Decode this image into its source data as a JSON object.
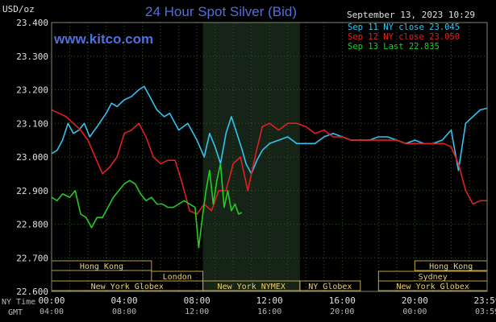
{
  "chart_data": {
    "type": "line",
    "title": "24 Hour Spot Silver (Bid)",
    "watermark": "www.kitco.com",
    "timestamp": "September 13, 2023 10:29",
    "ylabel": "USD/oz",
    "ylim": [
      22.6,
      23.4
    ],
    "yticks": [
      "23.400",
      "23.300",
      "23.200",
      "23.100",
      "23.000",
      "22.900",
      "22.800",
      "22.700",
      "22.600"
    ],
    "ytick_values": [
      23.4,
      23.3,
      23.2,
      23.1,
      23.0,
      22.9,
      22.8,
      22.7,
      22.6
    ],
    "xlim_hours": [
      0,
      23.98
    ],
    "xtick_hours": [
      0,
      4,
      8,
      12,
      16,
      20,
      23.98
    ],
    "xticks_ny": [
      "00:00",
      "04:00",
      "08:00",
      "12:00",
      "16:00",
      "20:00",
      "23:59"
    ],
    "xticks_gmt": [
      "04:00",
      "08:00",
      "12:00",
      "16:00",
      "20:00",
      "00:00",
      "03:59"
    ],
    "x_row_labels": {
      "ny": "NY Time",
      "gmt": "GMT"
    },
    "grid": true,
    "legend_position": "top-right",
    "shaded_session_hours": [
      8.33,
      13.67
    ],
    "colors": {
      "sep11": "#33c3f0",
      "sep12": "#e02020",
      "sep13": "#22cc22",
      "title": "#4f6fe0",
      "grid": "#3a5030",
      "session_text": "#e8d070",
      "session_border": "#c0a040",
      "shade": "#162418"
    },
    "sessions": [
      {
        "label": "Hong Kong",
        "start": 0,
        "end": 5.5,
        "row": 1
      },
      {
        "label": "London",
        "start": 5.5,
        "end": 8.33,
        "row": 2
      },
      {
        "label": "New York Globex",
        "start": 0,
        "end": 8.33,
        "row": 3
      },
      {
        "label": "New York NYMEX",
        "start": 8.33,
        "end": 13.67,
        "row": 3
      },
      {
        "label": "NY Globex",
        "start": 13.67,
        "end": 17.0,
        "row": 3
      },
      {
        "label": "Hong Kong",
        "start": 20.0,
        "end": 23.98,
        "row": 1
      },
      {
        "label": "Sydney",
        "start": 18.0,
        "end": 23.98,
        "row": 2
      },
      {
        "label": "New York Globex",
        "start": 18.0,
        "end": 23.98,
        "row": 3
      }
    ],
    "series": [
      {
        "name": "Sep 11",
        "legend": "Sep 11 NY close 23.045",
        "color": "#33c3f0",
        "x": [
          0,
          0.3,
          0.6,
          0.9,
          1.2,
          1.5,
          1.8,
          2.1,
          2.5,
          3.0,
          3.3,
          3.6,
          4.0,
          4.4,
          4.8,
          5.1,
          5.4,
          5.8,
          6.2,
          6.5,
          7.0,
          7.5,
          8.0,
          8.4,
          8.7,
          9.0,
          9.3,
          9.6,
          9.9,
          10.2,
          10.5,
          10.7,
          11.0,
          11.3,
          11.6,
          12.0,
          12.5,
          13.0,
          13.5,
          14.0,
          14.5,
          15.0,
          15.5,
          16.0,
          16.5,
          17.0,
          17.5,
          18.0,
          18.5,
          19.0,
          19.5,
          20.0,
          20.5,
          21.0,
          21.5,
          22.0,
          22.4,
          22.8,
          23.2,
          23.6,
          23.98
        ],
        "values": [
          23.01,
          23.02,
          23.05,
          23.1,
          23.07,
          23.08,
          23.1,
          23.06,
          23.09,
          23.13,
          23.16,
          23.15,
          23.17,
          23.18,
          23.2,
          23.21,
          23.18,
          23.14,
          23.12,
          23.13,
          23.08,
          23.1,
          23.05,
          23.0,
          23.07,
          23.03,
          22.98,
          23.07,
          23.12,
          23.07,
          23.02,
          22.98,
          22.95,
          22.99,
          23.02,
          23.04,
          23.05,
          23.06,
          23.04,
          23.04,
          23.04,
          23.06,
          23.07,
          23.06,
          23.05,
          23.05,
          23.05,
          23.06,
          23.06,
          23.05,
          23.04,
          23.05,
          23.04,
          23.04,
          23.05,
          23.08,
          22.96,
          23.1,
          23.12,
          23.14,
          23.145
        ]
      },
      {
        "name": "Sep 12",
        "legend": "Sep 12 NY close 23.050",
        "color": "#e02020",
        "x": [
          0,
          0.4,
          0.8,
          1.2,
          1.6,
          2.0,
          2.4,
          2.8,
          3.2,
          3.6,
          4.0,
          4.4,
          4.8,
          5.2,
          5.6,
          6.0,
          6.4,
          6.8,
          7.2,
          7.6,
          8.0,
          8.4,
          8.8,
          9.2,
          9.6,
          10.0,
          10.4,
          10.8,
          11.2,
          11.6,
          12.0,
          12.5,
          13.0,
          13.5,
          14.0,
          14.5,
          15.0,
          15.5,
          16.0,
          16.5,
          17.0,
          17.5,
          18.0,
          18.5,
          19.0,
          19.5,
          20.0,
          20.5,
          21.0,
          21.3,
          21.6,
          22.0,
          22.4,
          22.8,
          23.2,
          23.6,
          23.98
        ],
        "values": [
          23.14,
          23.13,
          23.12,
          23.1,
          23.08,
          23.05,
          23.0,
          22.95,
          22.97,
          23.0,
          23.07,
          23.08,
          23.1,
          23.06,
          23.0,
          22.98,
          22.99,
          22.99,
          22.92,
          22.84,
          22.83,
          22.86,
          22.84,
          22.9,
          22.9,
          22.98,
          23.0,
          22.9,
          23.0,
          23.09,
          23.1,
          23.08,
          23.1,
          23.1,
          23.09,
          23.07,
          23.08,
          23.06,
          23.06,
          23.05,
          23.05,
          23.05,
          23.05,
          23.05,
          23.05,
          23.04,
          23.04,
          23.04,
          23.04,
          23.04,
          23.04,
          23.03,
          22.98,
          22.9,
          22.86,
          22.87,
          22.87
        ]
      },
      {
        "name": "Sep 13",
        "legend": "Sep 13 Last 22.835",
        "color": "#22cc22",
        "x": [
          0,
          0.3,
          0.6,
          1.0,
          1.3,
          1.6,
          1.9,
          2.2,
          2.5,
          2.8,
          3.1,
          3.4,
          3.7,
          4.0,
          4.3,
          4.6,
          4.9,
          5.2,
          5.5,
          5.8,
          6.1,
          6.4,
          6.7,
          7.0,
          7.3,
          7.6,
          7.9,
          8.1,
          8.3,
          8.5,
          8.7,
          8.9,
          9.1,
          9.3,
          9.5,
          9.7,
          9.9,
          10.1,
          10.3,
          10.48
        ],
        "values": [
          22.88,
          22.87,
          22.89,
          22.88,
          22.9,
          22.83,
          22.82,
          22.79,
          22.82,
          22.82,
          22.85,
          22.88,
          22.9,
          22.92,
          22.93,
          22.92,
          22.89,
          22.87,
          22.88,
          22.86,
          22.86,
          22.85,
          22.85,
          22.86,
          22.87,
          22.86,
          22.85,
          22.73,
          22.82,
          22.9,
          22.96,
          22.86,
          22.93,
          22.98,
          22.85,
          22.9,
          22.84,
          22.86,
          22.83,
          22.835
        ]
      }
    ]
  }
}
